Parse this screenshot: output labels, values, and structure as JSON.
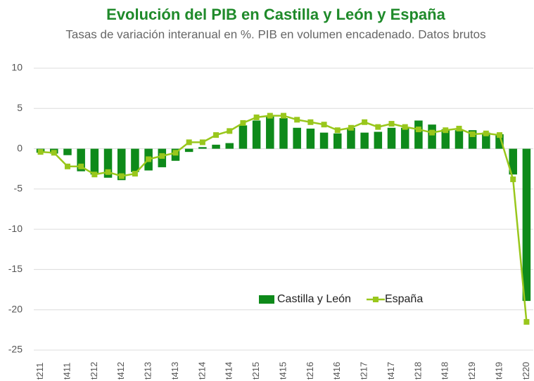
{
  "chart_data": {
    "type": "bar",
    "title": "Evolución del PIB en Castilla y León y España",
    "subtitle": "Tasas de variación interanual en %.  PIB en volumen encadenado. Datos brutos",
    "categories": [
      "t211",
      null,
      "t411",
      null,
      "t212",
      null,
      "t412",
      null,
      "t213",
      null,
      "t413",
      null,
      "t214",
      null,
      "t414",
      null,
      "t215",
      null,
      "t415",
      null,
      "t216",
      null,
      "t416",
      null,
      "t217",
      null,
      "t417",
      null,
      "t218",
      null,
      "t418",
      null,
      "t219",
      null,
      "t419",
      null,
      "t220"
    ],
    "series": [
      {
        "name": "Castilla y León",
        "type": "bar",
        "color": "#0e8a1a",
        "values": [
          -0.5,
          -0.6,
          -0.8,
          -2.8,
          -3.2,
          -3.6,
          -3.9,
          -2.9,
          -2.7,
          -2.3,
          -1.5,
          -0.4,
          0.2,
          0.5,
          0.7,
          2.9,
          3.5,
          4.0,
          3.8,
          2.6,
          2.5,
          2.0,
          1.9,
          2.6,
          2.0,
          2.1,
          2.6,
          2.6,
          3.5,
          3.0,
          2.4,
          2.3,
          2.3,
          2.0,
          1.8,
          -3.2,
          -18.9
        ]
      },
      {
        "name": "España",
        "type": "line",
        "color": "#99c71c",
        "values": [
          -0.4,
          -0.5,
          -2.2,
          -2.2,
          -3.2,
          -2.9,
          -3.4,
          -3.1,
          -1.3,
          -0.9,
          -0.5,
          0.8,
          0.8,
          1.7,
          2.2,
          3.2,
          3.9,
          4.1,
          4.1,
          3.6,
          3.3,
          3.0,
          2.3,
          2.6,
          3.3,
          2.7,
          3.1,
          2.7,
          2.4,
          2.0,
          2.3,
          2.5,
          1.8,
          1.9,
          1.7,
          -3.8,
          -21.5
        ]
      }
    ],
    "ylim": [
      -25,
      10
    ],
    "yticks": [
      -25,
      -20,
      -15,
      -10,
      -5,
      0,
      5,
      10
    ],
    "grid": true,
    "legend": "inside"
  }
}
